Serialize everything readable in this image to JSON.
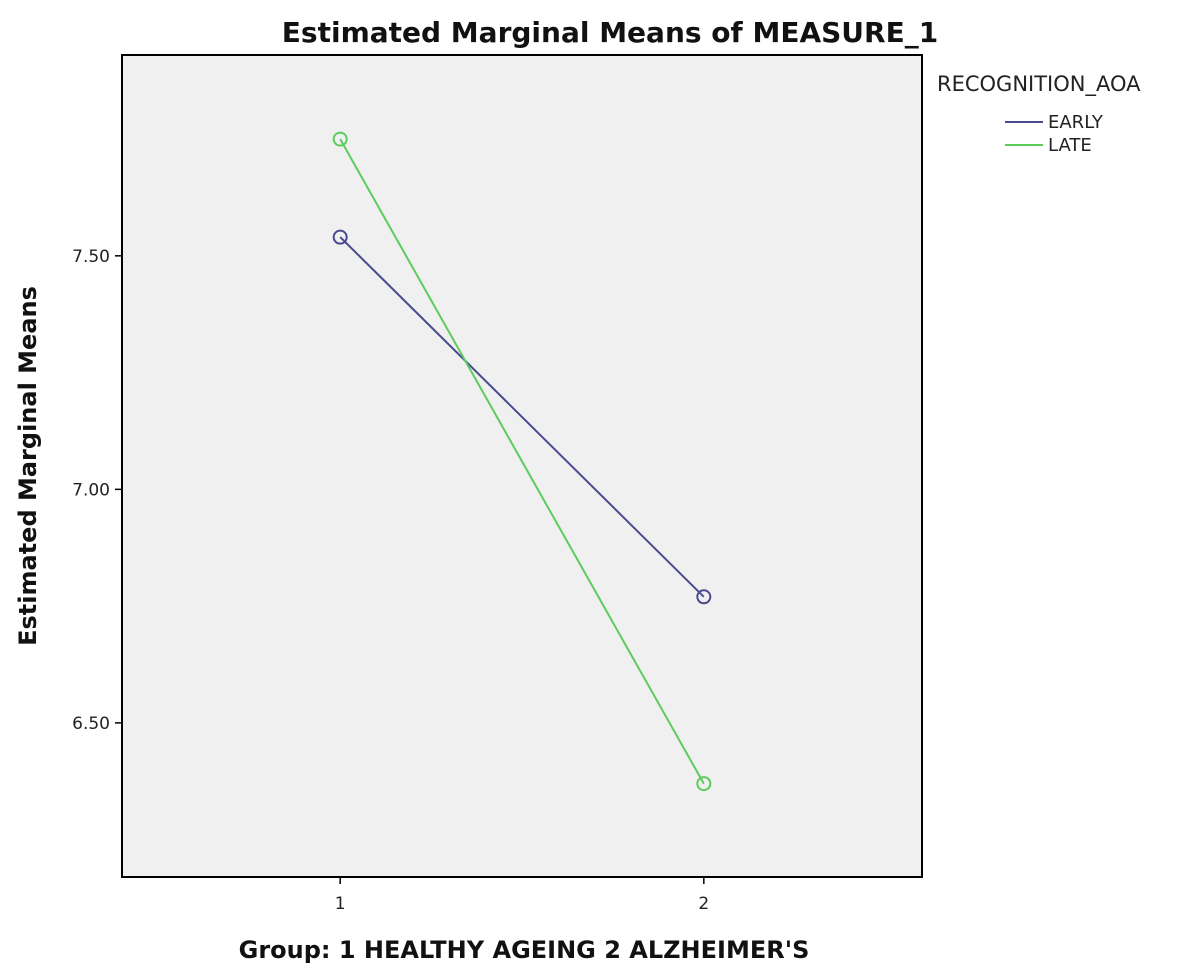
{
  "chart_data": {
    "type": "line",
    "title": "Estimated Marginal Means of MEASURE_1",
    "xlabel": "Group: 1 HEALTHY AGEING 2 ALZHEIMER'S",
    "ylabel": "Estimated Marginal Means",
    "categories": [
      "1",
      "2"
    ],
    "x": [
      1,
      2
    ],
    "xlim": [
      0.4,
      2.6
    ],
    "ylim": [
      6.17,
      7.93
    ],
    "yticks": [
      6.5,
      7.0,
      7.5
    ],
    "ytick_labels": [
      "6.50",
      "7.00",
      "7.50"
    ],
    "grid": false,
    "plot_background": "#f0f0f0",
    "marker": "open-circle",
    "legend": {
      "title": "RECOGNITION_AOA",
      "placement": "right"
    },
    "series": [
      {
        "name": "EARLY",
        "color": "#4a4a8f",
        "values": [
          7.54,
          6.77
        ]
      },
      {
        "name": "LATE",
        "color": "#5ccc5c",
        "values": [
          7.75,
          6.37
        ]
      }
    ]
  }
}
